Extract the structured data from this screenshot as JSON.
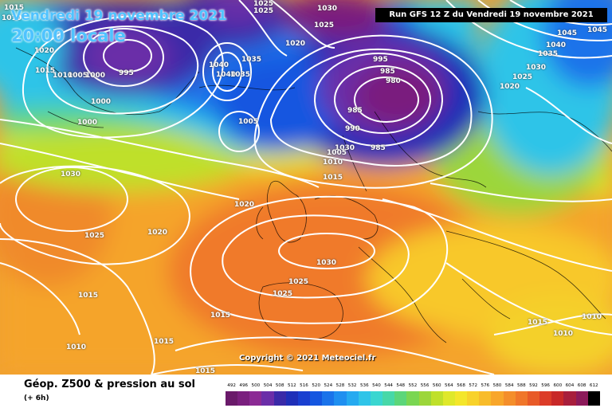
{
  "header": {
    "date": "Vendredi 19 novembre 2021",
    "time": "20:00 locale",
    "run": "Run GFS 12 Z du Vendredi 19 novembre 2021"
  },
  "copyright": "Copyright © 2021 Meteociel.fr",
  "footer": {
    "title": "Géop. Z500 & pression au sol",
    "subtitle": "(+ 6h)"
  },
  "isobar_labels": [
    {
      "text": "1025"
    },
    {
      "text": "1025"
    },
    {
      "text": "1030"
    },
    {
      "text": "1025"
    },
    {
      "text": "1045"
    },
    {
      "text": "1045"
    },
    {
      "text": "1010"
    },
    {
      "text": "1020"
    },
    {
      "text": "1015"
    },
    {
      "text": "1010"
    },
    {
      "text": "1005"
    },
    {
      "text": "1000"
    },
    {
      "text": "995"
    },
    {
      "text": "1035"
    },
    {
      "text": "1040"
    },
    {
      "text": "1040"
    },
    {
      "text": "1035"
    },
    {
      "text": "1020"
    },
    {
      "text": "995"
    },
    {
      "text": "985"
    },
    {
      "text": "980"
    },
    {
      "text": "985"
    },
    {
      "text": "990"
    },
    {
      "text": "985"
    },
    {
      "text": "1000"
    },
    {
      "text": "1000"
    },
    {
      "text": "1005"
    },
    {
      "text": "1030"
    },
    {
      "text": "1005"
    },
    {
      "text": "1010"
    },
    {
      "text": "1015"
    },
    {
      "text": "1030"
    },
    {
      "text": "1025"
    },
    {
      "text": "1020"
    },
    {
      "text": "1020"
    },
    {
      "text": "1030"
    },
    {
      "text": "1025"
    },
    {
      "text": "1025"
    },
    {
      "text": "1015"
    },
    {
      "text": "1015"
    },
    {
      "text": "1015"
    },
    {
      "text": "1010"
    },
    {
      "text": "1015"
    },
    {
      "text": "1015"
    },
    {
      "text": "1010"
    },
    {
      "text": "1010"
    },
    {
      "text": "1040"
    },
    {
      "text": "1035"
    },
    {
      "text": "1030"
    },
    {
      "text": "1025"
    },
    {
      "text": "1020"
    },
    {
      "text": "1015"
    }
  ],
  "legend": {
    "labels": [
      "492",
      "496",
      "500",
      "504",
      "508",
      "512",
      "516",
      "520",
      "524",
      "528",
      "532",
      "536",
      "540",
      "544",
      "548",
      "552",
      "556",
      "560",
      "564",
      "568",
      "572",
      "576",
      "580",
      "584",
      "588",
      "592",
      "596",
      "600",
      "604",
      "608",
      "612"
    ],
    "colors": [
      "#6a1a6a",
      "#7a1f7e",
      "#8b2a94",
      "#6b2ea8",
      "#3a2aa8",
      "#1f2fb8",
      "#1a3fd0",
      "#1456e0",
      "#1a73ea",
      "#1f8ff0",
      "#25aaf0",
      "#2fc4e8",
      "#3ad6d0",
      "#47d8a8",
      "#5cd67a",
      "#7ad652",
      "#9cd63a",
      "#bfe02a",
      "#dfe82a",
      "#f4e62a",
      "#f8d22a",
      "#f8bc2a",
      "#f8a62a",
      "#f48e2a",
      "#f0762a",
      "#e85a28",
      "#dc3c28",
      "#c82828",
      "#a81e3c",
      "#8c1a5a",
      "#000000"
    ]
  },
  "colors": {
    "title_blue": "#4fc3ff",
    "isobar": "#ffffff",
    "run_box_bg": "#000000"
  }
}
